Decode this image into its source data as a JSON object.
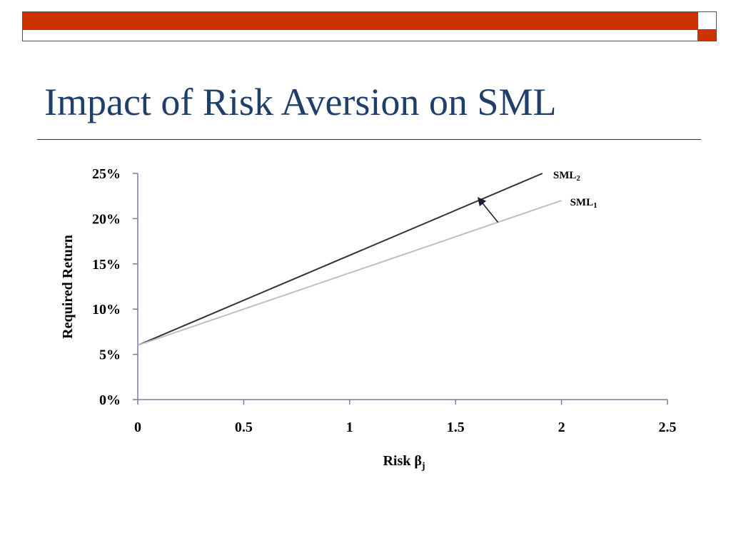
{
  "slide": {
    "title": "Impact of Risk Aversion on SML",
    "colors": {
      "accent": "#cc3300",
      "title": "#1f3f6b"
    }
  },
  "chart_data": {
    "type": "line",
    "title": "",
    "xlabel": "Risk",
    "xlabel_symbol": "β",
    "xlabel_subscript": "j",
    "ylabel": "Required Return",
    "xlim": [
      0,
      2.5
    ],
    "ylim": [
      0,
      25
    ],
    "x_ticks": [
      "0",
      "0.5",
      "1",
      "1.5",
      "2",
      "2.5"
    ],
    "y_ticks": [
      "0%",
      "5%",
      "10%",
      "15%",
      "20%",
      "25%"
    ],
    "grid": false,
    "series": [
      {
        "name": "SML",
        "subscript": "2",
        "color": "#333333",
        "x": [
          0,
          1.91
        ],
        "y": [
          6,
          25
        ]
      },
      {
        "name": "SML",
        "subscript": "1",
        "color": "#c0c0c0",
        "x": [
          0,
          2.0
        ],
        "y": [
          6,
          22
        ]
      }
    ],
    "annotations": [
      {
        "type": "arrow",
        "from": [
          1.7,
          19.6
        ],
        "to": [
          1.61,
          22.2
        ],
        "meaning": "shift from SML1 to SML2"
      }
    ]
  }
}
